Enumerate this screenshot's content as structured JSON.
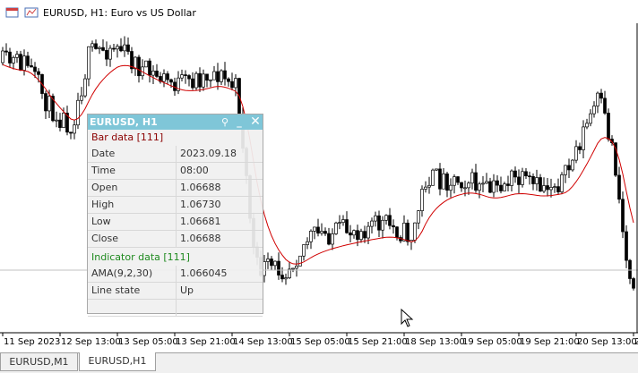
{
  "window": {
    "title": "EURUSD, H1:  Euro vs US Dollar"
  },
  "time_axis": [
    "11 Sep 2023",
    "12 Sep 13:00",
    "13 Sep 05:00",
    "13 Sep 21:00",
    "14 Sep 13:00",
    "15 Sep 05:00",
    "15 Sep 21:00",
    "18 Sep 13:00",
    "19 Sep 05:00",
    "19 Sep 21:00",
    "20 Sep 13:00",
    "2"
  ],
  "data_window": {
    "title": "EURUSD, H1",
    "sections": [
      {
        "title": "Bar data [111]",
        "rows": [
          [
            "Date",
            "2023.09.18"
          ],
          [
            "Time",
            "08:00"
          ],
          [
            "Open",
            "1.06688"
          ],
          [
            "High",
            "1.06730"
          ],
          [
            "Low",
            "1.06681"
          ],
          [
            "Close",
            "1.06688"
          ]
        ]
      },
      {
        "title": "Indicator data [111]",
        "rows": [
          [
            "AMA(9,2,30)",
            "1.066045"
          ],
          [
            "Line state",
            "Up"
          ]
        ]
      }
    ]
  },
  "tabs": [
    "EURUSD,M1",
    "EURUSD,H1"
  ]
}
